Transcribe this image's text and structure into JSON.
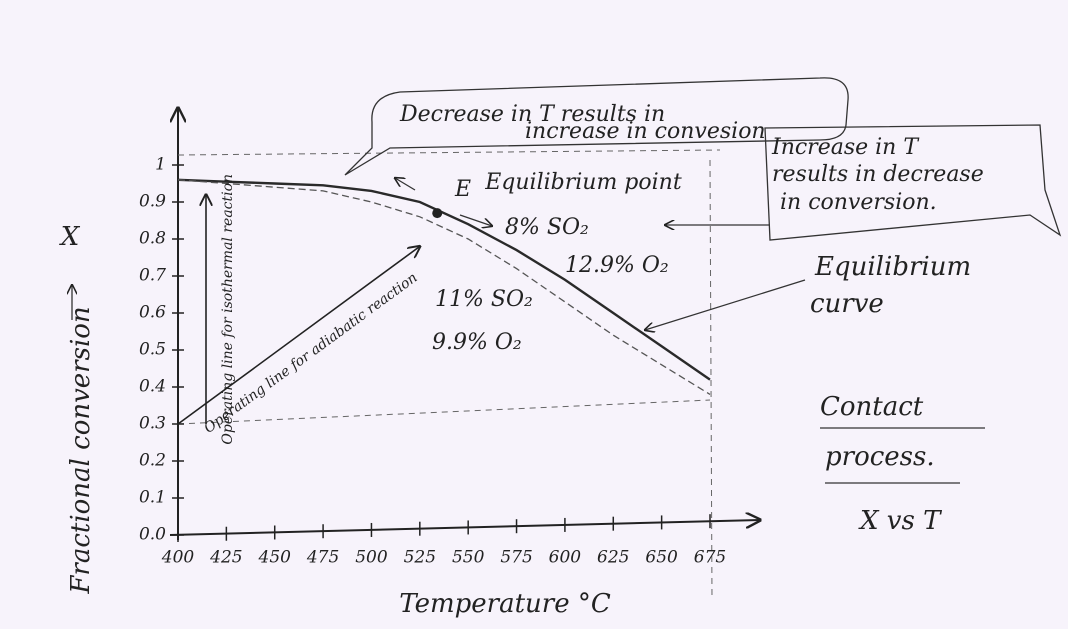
{
  "chart_data": {
    "type": "line",
    "x_label": "Temperature °C",
    "y_label": "Fractional conversion",
    "y_symbol": "X",
    "x": [
      400,
      425,
      450,
      475,
      500,
      525,
      550,
      575,
      600,
      625,
      650,
      675
    ],
    "series": [
      {
        "color": "#2a2a2a",
        "line_style": "solid",
        "values": [
          0.96,
          0.955,
          0.95,
          0.945,
          0.93,
          0.9,
          0.84,
          0.77,
          0.69,
          0.6,
          0.51,
          0.42
        ]
      },
      {
        "color": "#555555",
        "line_style": "dashed",
        "values": [
          0.96,
          0.95,
          0.94,
          0.93,
          0.9,
          0.86,
          0.8,
          0.72,
          0.63,
          0.54,
          0.46,
          0.38
        ]
      }
    ],
    "xlim": [
      400,
      675
    ],
    "ylim": [
      0,
      1
    ],
    "xticks": [
      400,
      425,
      450,
      475,
      500,
      525,
      550,
      575,
      600,
      625,
      650,
      675
    ],
    "yticks": [
      {
        "value": 0,
        "label": "0.0"
      },
      0.1,
      0.2,
      0.3,
      0.4,
      0.5,
      0.6,
      0.7,
      0.8,
      0.9,
      1
    ],
    "operating_lines": [
      {
        "label": "Operating line for isothermal reaction",
        "x": [
          400,
          400
        ],
        "y": [
          0.3,
          0.92
        ]
      },
      {
        "label": "Operating line for adiabatic reaction",
        "x": [
          400,
          525
        ],
        "y": [
          0.3,
          0.78
        ]
      }
    ],
    "equilibrium_point": {
      "label": "Equilibrium point",
      "x": 534,
      "y": 0.87
    },
    "annotations": {
      "decrease": [
        "Decrease in T results in",
        "increase in convesion"
      ],
      "increase": [
        "Increase in T",
        "results in decrease",
        "in conversion."
      ],
      "e": "E",
      "feed1": [
        "8% SO₂",
        "12.9% O₂"
      ],
      "feed2": [
        "11% SO₂",
        "9.9% O₂"
      ],
      "curve": [
        "Equilibrium",
        "curve"
      ],
      "process": [
        "Contact",
        "process."
      ],
      "xvst": "X vs T"
    }
  }
}
